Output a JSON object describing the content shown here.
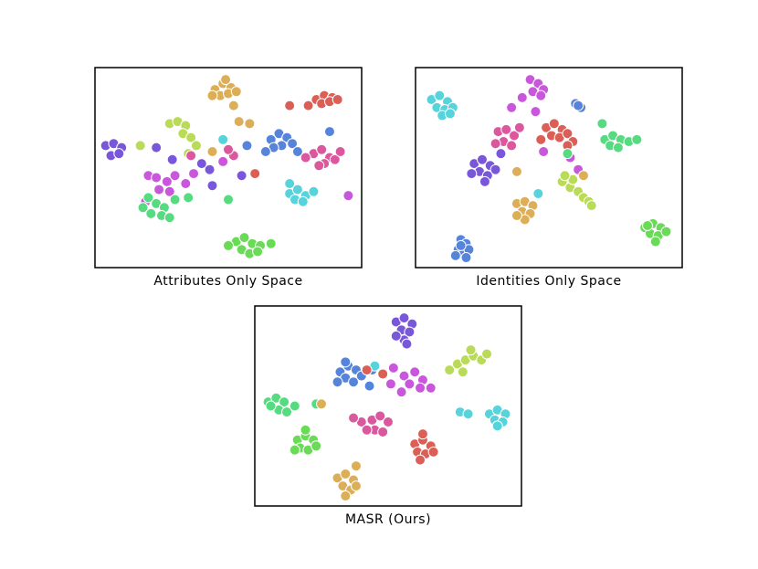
{
  "chart_data": [
    {
      "type": "scatter",
      "xlabel": "Attributes Only Space",
      "xlim": [
        0,
        100
      ],
      "ylim": [
        0,
        100
      ],
      "series": [
        {
          "color": "#dbae57",
          "x": [
            45,
            48,
            51,
            47,
            50,
            53,
            44,
            49,
            52,
            54,
            58,
            44
          ],
          "y": [
            89,
            92,
            90,
            86,
            87,
            88,
            86,
            94,
            81,
            73,
            72,
            58
          ]
        },
        {
          "color": "#db5f57",
          "x": [
            83,
            86,
            89,
            85,
            88,
            91,
            80,
            73,
            60
          ],
          "y": [
            84,
            86,
            85,
            82,
            83,
            84,
            81,
            81,
            47
          ]
        },
        {
          "color": "#b9db57",
          "x": [
            28,
            31,
            34,
            33,
            36,
            38,
            35,
            17
          ],
          "y": [
            72,
            73,
            71,
            67,
            65,
            61,
            57,
            61
          ]
        },
        {
          "color": "#5784db",
          "x": [
            66,
            69,
            72,
            70,
            74,
            67,
            64,
            76,
            88,
            57
          ],
          "y": [
            64,
            67,
            65,
            61,
            62,
            60,
            58,
            58,
            68,
            61
          ]
        },
        {
          "color": "#db579e",
          "x": [
            82,
            85,
            88,
            86,
            90,
            84,
            92,
            79,
            52,
            50,
            36
          ],
          "y": [
            57,
            59,
            55,
            52,
            54,
            51,
            58,
            55,
            56,
            59,
            56
          ]
        },
        {
          "color": "#7957db",
          "x": [
            4,
            7,
            10,
            6,
            9,
            23,
            29,
            43,
            55,
            44,
            40
          ],
          "y": [
            61,
            62,
            60,
            56,
            57,
            60,
            54,
            49,
            46,
            41,
            52
          ]
        },
        {
          "color": "#c957db",
          "x": [
            20,
            23,
            27,
            30,
            24,
            28,
            19,
            34,
            37,
            95,
            48
          ],
          "y": [
            46,
            45,
            43,
            46,
            39,
            38,
            33,
            42,
            47,
            36,
            53
          ]
        },
        {
          "color": "#57db80",
          "x": [
            20,
            23,
            26,
            21,
            25,
            30,
            28,
            35,
            18,
            50
          ],
          "y": [
            35,
            32,
            30,
            27,
            26,
            34,
            25,
            35,
            30,
            34
          ]
        },
        {
          "color": "#57d3db",
          "x": [
            73,
            76,
            79,
            82,
            75,
            78,
            73,
            48
          ],
          "y": [
            37,
            39,
            36,
            38,
            34,
            33,
            42,
            64
          ]
        },
        {
          "color": "#69db57",
          "x": [
            53,
            56,
            59,
            62,
            55,
            58,
            61,
            66,
            50
          ],
          "y": [
            13,
            15,
            12,
            11,
            9,
            7,
            8,
            12,
            11
          ]
        }
      ]
    },
    {
      "type": "scatter",
      "xlabel": "Identities Only Space",
      "xlim": [
        0,
        100
      ],
      "ylim": [
        0,
        100
      ],
      "series": [
        {
          "color": "#57d3db",
          "x": [
            6,
            9,
            12,
            8,
            11,
            14,
            10,
            13,
            46
          ],
          "y": [
            84,
            86,
            83,
            80,
            79,
            80,
            76,
            77,
            37
          ]
        },
        {
          "color": "#c957db",
          "x": [
            43,
            46,
            48,
            44,
            47,
            36,
            45,
            40,
            58,
            61,
            48
          ],
          "y": [
            94,
            92,
            89,
            88,
            86,
            80,
            78,
            85,
            55,
            49,
            58
          ]
        },
        {
          "color": "#5784db",
          "x": [
            60,
            62,
            61
          ],
          "y": [
            82,
            80,
            81
          ]
        },
        {
          "color": "#db5f57",
          "x": [
            49,
            52,
            55,
            51,
            54,
            57,
            59,
            47,
            57
          ],
          "y": [
            70,
            72,
            69,
            66,
            65,
            67,
            63,
            64,
            61
          ]
        },
        {
          "color": "#db579e",
          "x": [
            31,
            34,
            37,
            33,
            36,
            30,
            39
          ],
          "y": [
            68,
            69,
            66,
            63,
            61,
            62,
            70
          ]
        },
        {
          "color": "#57db80",
          "x": [
            71,
            74,
            77,
            80,
            73,
            76,
            83,
            70,
            57
          ],
          "y": [
            64,
            66,
            64,
            63,
            61,
            60,
            64,
            72,
            57
          ]
        },
        {
          "color": "#7957db",
          "x": [
            22,
            25,
            28,
            24,
            27,
            30,
            26,
            21,
            32
          ],
          "y": [
            52,
            54,
            51,
            48,
            46,
            49,
            43,
            47,
            57
          ]
        },
        {
          "color": "#dbae57",
          "x": [
            38,
            41,
            44,
            40,
            43,
            41,
            38,
            38,
            63
          ],
          "y": [
            32,
            33,
            31,
            28,
            27,
            24,
            26,
            48,
            46
          ]
        },
        {
          "color": "#b9db57",
          "x": [
            55,
            58,
            61,
            63,
            65,
            66,
            59,
            56
          ],
          "y": [
            43,
            40,
            38,
            35,
            33,
            31,
            44,
            46
          ]
        },
        {
          "color": "#69db57",
          "x": [
            86,
            89,
            92,
            88,
            91,
            94,
            90,
            87
          ],
          "y": [
            20,
            22,
            20,
            17,
            16,
            18,
            13,
            21
          ]
        },
        {
          "color": "#5784db",
          "x": [
            17,
            19,
            16,
            18,
            20,
            15,
            19,
            17
          ],
          "y": [
            14,
            12,
            9,
            7,
            9,
            6,
            5,
            11
          ]
        }
      ]
    },
    {
      "type": "scatter",
      "xlabel": "MASR (Ours)",
      "xlim": [
        0,
        100
      ],
      "ylim": [
        0,
        100
      ],
      "series": [
        {
          "color": "#7957db",
          "x": [
            53,
            56,
            59,
            55,
            58,
            56,
            53,
            57
          ],
          "y": [
            92,
            94,
            91,
            88,
            87,
            83,
            85,
            81
          ]
        },
        {
          "color": "#5784db",
          "x": [
            32,
            35,
            38,
            34,
            37,
            40,
            31,
            43,
            34,
            44
          ],
          "y": [
            67,
            70,
            68,
            64,
            62,
            65,
            62,
            60,
            72,
            68
          ]
        },
        {
          "color": "#57d3db",
          "x": [
            88,
            91,
            94,
            90,
            93,
            91,
            77,
            80,
            45
          ],
          "y": [
            46,
            48,
            46,
            43,
            42,
            40,
            47,
            46,
            70
          ]
        },
        {
          "color": "#db5f57",
          "x": [
            60,
            63,
            66,
            61,
            64,
            62,
            67,
            63,
            42,
            48
          ],
          "y": [
            31,
            33,
            30,
            27,
            26,
            23,
            27,
            36,
            68,
            66
          ]
        },
        {
          "color": "#c957db",
          "x": [
            56,
            60,
            63,
            58,
            62,
            55,
            52,
            51,
            66
          ],
          "y": [
            65,
            67,
            63,
            61,
            59,
            57,
            69,
            61,
            59
          ]
        },
        {
          "color": "#b9db57",
          "x": [
            73,
            76,
            79,
            82,
            85,
            78,
            81,
            87
          ],
          "y": [
            68,
            71,
            73,
            75,
            73,
            67,
            78,
            76
          ]
        },
        {
          "color": "#57db80",
          "x": [
            5,
            8,
            11,
            9,
            12,
            15,
            6,
            23
          ],
          "y": [
            52,
            54,
            52,
            48,
            47,
            50,
            50,
            51
          ]
        },
        {
          "color": "#dbae57",
          "x": [
            31,
            34,
            37,
            33,
            36,
            34,
            38,
            38,
            25
          ],
          "y": [
            14,
            16,
            13,
            10,
            8,
            5,
            10,
            20,
            51
          ]
        },
        {
          "color": "#db579e",
          "x": [
            40,
            44,
            47,
            50,
            45,
            48,
            42,
            37
          ],
          "y": [
            42,
            43,
            45,
            42,
            38,
            37,
            38,
            44
          ]
        },
        {
          "color": "#69db57",
          "x": [
            16,
            19,
            22,
            17,
            20,
            23,
            19,
            15
          ],
          "y": [
            33,
            35,
            33,
            29,
            28,
            30,
            38,
            28
          ]
        }
      ]
    }
  ]
}
